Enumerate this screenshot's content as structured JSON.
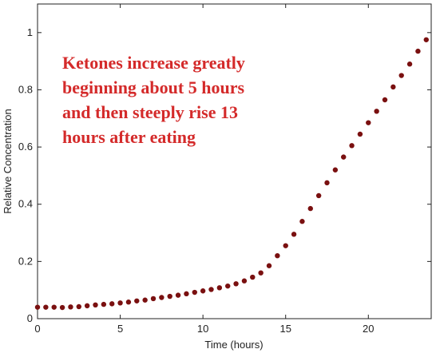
{
  "chart_data": {
    "type": "scatter",
    "xlabel": "Time (hours)",
    "ylabel": "Relative Concentration",
    "xlim": [
      0,
      23.8
    ],
    "ylim": [
      0,
      1.1
    ],
    "xticks": [
      0,
      5,
      10,
      15,
      20
    ],
    "yticks": [
      0,
      0.2,
      0.4,
      0.6,
      0.8,
      1
    ],
    "xtick_labels": [
      "0",
      "5",
      "10",
      "15",
      "20"
    ],
    "ytick_labels": [
      "0",
      "0.2",
      "0.4",
      "0.6",
      "0.8",
      "1"
    ],
    "grid": false,
    "marker_color": "#7a1010",
    "annotation": {
      "lines": [
        "Ketones increase greatly",
        "beginning about 5 hours",
        "and then steeply rise 13",
        "hours after eating"
      ],
      "color": "#d42a2a"
    },
    "x": [
      0,
      0.5,
      1,
      1.5,
      2,
      2.5,
      3,
      3.5,
      4,
      4.5,
      5,
      5.5,
      6,
      6.5,
      7,
      7.5,
      8,
      8.5,
      9,
      9.5,
      10,
      10.5,
      11,
      11.5,
      12,
      12.5,
      13,
      13.5,
      14,
      14.5,
      15,
      15.5,
      16,
      16.5,
      17,
      17.5,
      18,
      18.5,
      19,
      19.5,
      20,
      20.5,
      21,
      21.5,
      22,
      22.5,
      23,
      23.5
    ],
    "y": [
      0.04,
      0.04,
      0.04,
      0.039,
      0.041,
      0.042,
      0.045,
      0.048,
      0.05,
      0.052,
      0.055,
      0.058,
      0.062,
      0.065,
      0.07,
      0.074,
      0.078,
      0.082,
      0.087,
      0.092,
      0.097,
      0.102,
      0.108,
      0.114,
      0.122,
      0.132,
      0.145,
      0.16,
      0.185,
      0.22,
      0.255,
      0.295,
      0.34,
      0.385,
      0.43,
      0.475,
      0.52,
      0.565,
      0.605,
      0.645,
      0.685,
      0.725,
      0.765,
      0.81,
      0.85,
      0.89,
      0.935,
      0.975
    ]
  }
}
